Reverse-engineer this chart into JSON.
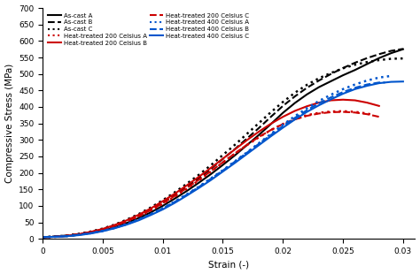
{
  "title": "",
  "xlabel": "Strain (-)",
  "ylabel": "Compressive Stress (MPa)",
  "xlim": [
    0,
    0.031
  ],
  "ylim": [
    0,
    700
  ],
  "yticks": [
    0,
    50,
    100,
    150,
    200,
    250,
    300,
    350,
    400,
    450,
    500,
    550,
    600,
    650,
    700
  ],
  "xticks": [
    0,
    0.005,
    0.01,
    0.015,
    0.02,
    0.025,
    0.03
  ],
  "series": [
    {
      "label": "As-cast A",
      "color": "#000000",
      "linestyle": "solid",
      "linewidth": 1.5,
      "x": [
        0,
        0.001,
        0.002,
        0.003,
        0.004,
        0.005,
        0.006,
        0.007,
        0.008,
        0.009,
        0.01,
        0.011,
        0.012,
        0.013,
        0.014,
        0.015,
        0.016,
        0.017,
        0.018,
        0.019,
        0.02,
        0.021,
        0.022,
        0.023,
        0.024,
        0.025,
        0.026,
        0.027,
        0.028,
        0.029,
        0.03
      ],
      "y": [
        5,
        6,
        8,
        12,
        18,
        25,
        35,
        48,
        63,
        80,
        100,
        122,
        145,
        170,
        196,
        224,
        253,
        284,
        315,
        348,
        382,
        412,
        438,
        460,
        478,
        496,
        512,
        530,
        548,
        563,
        575
      ]
    },
    {
      "label": "As-cast B",
      "color": "#000000",
      "linestyle": "dashed",
      "linewidth": 1.5,
      "x": [
        0,
        0.001,
        0.002,
        0.003,
        0.004,
        0.005,
        0.006,
        0.007,
        0.008,
        0.009,
        0.01,
        0.011,
        0.012,
        0.013,
        0.014,
        0.015,
        0.016,
        0.017,
        0.018,
        0.019,
        0.02,
        0.021,
        0.022,
        0.023,
        0.024,
        0.025,
        0.026,
        0.027,
        0.028,
        0.029,
        0.03
      ],
      "y": [
        5,
        7,
        10,
        14,
        20,
        28,
        40,
        54,
        70,
        88,
        110,
        133,
        158,
        184,
        212,
        242,
        272,
        304,
        336,
        370,
        403,
        432,
        458,
        480,
        500,
        518,
        534,
        548,
        560,
        570,
        576
      ]
    },
    {
      "label": "As-cast C",
      "color": "#000000",
      "linestyle": "dotted",
      "linewidth": 1.8,
      "x": [
        0,
        0.001,
        0.002,
        0.003,
        0.004,
        0.005,
        0.006,
        0.007,
        0.008,
        0.009,
        0.01,
        0.011,
        0.012,
        0.013,
        0.014,
        0.015,
        0.016,
        0.017,
        0.018,
        0.019,
        0.02,
        0.021,
        0.022,
        0.023,
        0.024,
        0.025,
        0.026,
        0.027,
        0.028,
        0.029,
        0.03
      ],
      "y": [
        5,
        7,
        10,
        15,
        22,
        31,
        43,
        58,
        75,
        95,
        117,
        141,
        167,
        194,
        223,
        254,
        285,
        318,
        351,
        384,
        415,
        443,
        467,
        487,
        503,
        517,
        528,
        536,
        542,
        546,
        547
      ]
    },
    {
      "label": "Heat-treated 200 Celsius A",
      "color": "#cc0000",
      "linestyle": "dotted",
      "linewidth": 1.8,
      "x": [
        0,
        0.001,
        0.002,
        0.003,
        0.004,
        0.005,
        0.006,
        0.007,
        0.008,
        0.009,
        0.01,
        0.011,
        0.012,
        0.013,
        0.014,
        0.015,
        0.016,
        0.017,
        0.018,
        0.019,
        0.02,
        0.021,
        0.022,
        0.023,
        0.024,
        0.025,
        0.026,
        0.027,
        0.0275
      ],
      "y": [
        5,
        6,
        9,
        13,
        20,
        28,
        38,
        52,
        68,
        86,
        106,
        128,
        152,
        177,
        204,
        231,
        258,
        284,
        308,
        330,
        348,
        363,
        375,
        382,
        386,
        387,
        385,
        380,
        376
      ]
    },
    {
      "label": "Heat-treated 200 Celsius B",
      "color": "#cc0000",
      "linestyle": "solid",
      "linewidth": 1.5,
      "x": [
        0,
        0.001,
        0.002,
        0.003,
        0.004,
        0.005,
        0.006,
        0.007,
        0.008,
        0.009,
        0.01,
        0.011,
        0.012,
        0.013,
        0.014,
        0.015,
        0.016,
        0.017,
        0.018,
        0.019,
        0.02,
        0.021,
        0.022,
        0.023,
        0.024,
        0.025,
        0.026,
        0.027,
        0.028
      ],
      "y": [
        5,
        6,
        9,
        14,
        21,
        30,
        42,
        56,
        73,
        92,
        114,
        137,
        162,
        188,
        215,
        243,
        271,
        299,
        325,
        349,
        370,
        388,
        402,
        413,
        420,
        422,
        420,
        413,
        403
      ]
    },
    {
      "label": "Heat-treated 200 Celsius C",
      "color": "#cc0000",
      "linestyle": "dashed",
      "linewidth": 1.5,
      "x": [
        0,
        0.001,
        0.002,
        0.003,
        0.004,
        0.005,
        0.006,
        0.007,
        0.008,
        0.009,
        0.01,
        0.011,
        0.012,
        0.013,
        0.014,
        0.015,
        0.016,
        0.017,
        0.018,
        0.019,
        0.02,
        0.021,
        0.022,
        0.023,
        0.024,
        0.025,
        0.026,
        0.027,
        0.028
      ],
      "y": [
        5,
        6,
        9,
        13,
        20,
        28,
        39,
        53,
        69,
        87,
        108,
        130,
        154,
        179,
        205,
        232,
        259,
        285,
        309,
        330,
        348,
        362,
        373,
        380,
        384,
        385,
        383,
        378,
        370
      ]
    },
    {
      "label": "Heat-treated 400 Celsius A",
      "color": "#0055cc",
      "linestyle": "dotted",
      "linewidth": 1.8,
      "x": [
        0,
        0.001,
        0.002,
        0.003,
        0.004,
        0.005,
        0.006,
        0.007,
        0.008,
        0.009,
        0.01,
        0.011,
        0.012,
        0.013,
        0.014,
        0.015,
        0.016,
        0.017,
        0.018,
        0.019,
        0.02,
        0.021,
        0.022,
        0.023,
        0.024,
        0.025,
        0.026,
        0.027,
        0.028,
        0.029
      ],
      "y": [
        5,
        6,
        8,
        12,
        17,
        24,
        33,
        45,
        59,
        75,
        93,
        113,
        135,
        158,
        183,
        208,
        235,
        262,
        290,
        318,
        346,
        372,
        396,
        418,
        437,
        454,
        468,
        480,
        489,
        494
      ]
    },
    {
      "label": "Heat-treated 400 Celsius B",
      "color": "#0055cc",
      "linestyle": "dashed",
      "linewidth": 1.5,
      "x": [
        0,
        0.001,
        0.002,
        0.003,
        0.004,
        0.005,
        0.006,
        0.007,
        0.008,
        0.009,
        0.01,
        0.011,
        0.012,
        0.013,
        0.014,
        0.015,
        0.016,
        0.017,
        0.018,
        0.019,
        0.02,
        0.021,
        0.022,
        0.023,
        0.024,
        0.025,
        0.026,
        0.027,
        0.028,
        0.0285
      ],
      "y": [
        5,
        6,
        8,
        12,
        17,
        24,
        33,
        44,
        58,
        74,
        92,
        112,
        134,
        157,
        182,
        207,
        234,
        261,
        288,
        315,
        342,
        367,
        390,
        411,
        429,
        445,
        458,
        468,
        474,
        474
      ]
    },
    {
      "label": "Heat-treated 400 Celsius C",
      "color": "#0055cc",
      "linestyle": "solid",
      "linewidth": 1.5,
      "x": [
        0,
        0.001,
        0.002,
        0.003,
        0.004,
        0.005,
        0.006,
        0.007,
        0.008,
        0.009,
        0.01,
        0.011,
        0.012,
        0.013,
        0.014,
        0.015,
        0.016,
        0.017,
        0.018,
        0.019,
        0.02,
        0.021,
        0.022,
        0.023,
        0.024,
        0.025,
        0.026,
        0.027,
        0.028,
        0.029,
        0.03
      ],
      "y": [
        5,
        6,
        8,
        11,
        16,
        23,
        32,
        43,
        56,
        72,
        89,
        109,
        131,
        154,
        178,
        204,
        230,
        257,
        284,
        311,
        337,
        362,
        385,
        405,
        423,
        440,
        454,
        464,
        472,
        476,
        477
      ]
    }
  ],
  "col1": [
    {
      "label": "As-cast A",
      "color": "#000000",
      "linestyle": "-"
    },
    {
      "label": "As-cast C",
      "color": "#000000",
      "linestyle": ":"
    },
    {
      "label": "Heat-treated 200 Celsius B",
      "color": "#cc0000",
      "linestyle": "-"
    },
    {
      "label": "Heat-treated 400 Celsius A",
      "color": "#0055cc",
      "linestyle": ":"
    },
    {
      "label": "Heat-treated 400 Celsius C",
      "color": "#0055cc",
      "linestyle": "-"
    }
  ],
  "col2": [
    {
      "label": "As-cast B",
      "color": "#000000",
      "linestyle": "--"
    },
    {
      "label": "Heat-treated 200 Celsius A",
      "color": "#cc0000",
      "linestyle": ":"
    },
    {
      "label": "Heat-treated 200 Celsius C",
      "color": "#cc0000",
      "linestyle": "--"
    },
    {
      "label": "Heat-treated 400 Celsius B",
      "color": "#0055cc",
      "linestyle": "--"
    }
  ]
}
